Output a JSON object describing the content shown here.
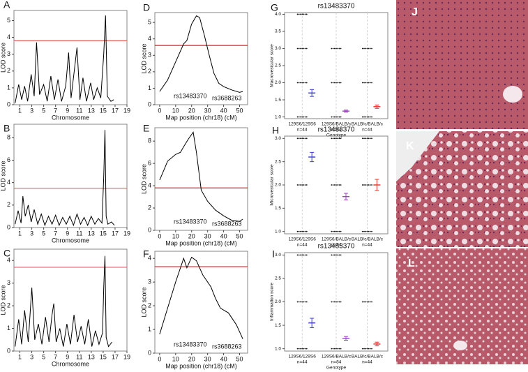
{
  "chart_data": [
    {
      "panel": "A",
      "type": "line",
      "ylabel": "LOD score",
      "xlabel": "Chromosome",
      "color": "#000000",
      "threshold": 3.8,
      "threshold_color": "#e06060",
      "x": [
        0.2,
        0.8,
        1.3,
        1.8,
        2.3,
        2.9,
        3.4,
        3.8,
        4.3,
        5,
        5.6,
        6.2,
        6.8,
        7.4,
        8,
        8.7,
        9.2,
        9.6,
        10.2,
        10.6,
        11.1,
        11.6,
        12.2,
        12.9,
        13.4,
        14,
        14.6,
        15.1,
        15.4,
        15.7,
        16.3,
        16.8
      ],
      "values": [
        0.1,
        1.2,
        0.3,
        1.1,
        0.2,
        1.8,
        0.5,
        3.7,
        0.6,
        1.2,
        0.2,
        1.7,
        0.3,
        1.5,
        0.2,
        1.1,
        3.1,
        0.4,
        2.2,
        3.4,
        0.3,
        1.6,
        0.2,
        1.3,
        0.3,
        1.0,
        0.4,
        3.0,
        5.3,
        0.5,
        0.2,
        0.3
      ],
      "xlim": [
        0,
        19
      ],
      "xticks": [
        1,
        3,
        5,
        7,
        9,
        11,
        13,
        15,
        17,
        19
      ],
      "ylim": [
        0,
        5.6
      ],
      "yticks": [
        0,
        1,
        2,
        3,
        4,
        5
      ]
    },
    {
      "panel": "B",
      "type": "line",
      "ylabel": "LOD score",
      "xlabel": "Chromosome",
      "color": "#000000",
      "threshold": 3.5,
      "threshold_color": "#e06060",
      "x": [
        0.2,
        0.7,
        1.2,
        1.5,
        1.9,
        2.4,
        2.9,
        3.4,
        4,
        4.6,
        5.2,
        5.8,
        6.4,
        7,
        7.6,
        8.2,
        8.8,
        9.4,
        10,
        10.6,
        11.2,
        11.8,
        12.4,
        13,
        13.6,
        14.2,
        14.8,
        15.1,
        15.3,
        15.5,
        15.8,
        16.4,
        16.9
      ],
      "values": [
        0.3,
        1.5,
        0.4,
        2.8,
        1.0,
        2.0,
        0.5,
        1.6,
        0.3,
        1.2,
        0.2,
        1.0,
        0.3,
        1.1,
        0.2,
        0.9,
        0.3,
        1.0,
        0.2,
        1.2,
        0.3,
        0.9,
        0.2,
        1.0,
        0.3,
        0.8,
        0.4,
        4.5,
        8.7,
        1.0,
        0.3,
        0.5,
        0.2
      ],
      "xlim": [
        0,
        19
      ],
      "xticks": [
        1,
        3,
        5,
        7,
        9,
        11,
        13,
        15,
        17,
        19
      ],
      "ylim": [
        0,
        9.2
      ],
      "yticks": [
        0,
        2,
        4,
        6,
        8
      ]
    },
    {
      "panel": "C",
      "type": "line",
      "ylabel": "LOD score",
      "xlabel": "Chromosome",
      "color": "#000000",
      "threshold": 3.7,
      "threshold_color": "#e06060",
      "x": [
        0.2,
        0.8,
        1.3,
        1.8,
        2.4,
        3,
        3.5,
        4.1,
        4.7,
        5.3,
        5.9,
        6.4,
        6.7,
        7.1,
        7.7,
        8.3,
        8.9,
        9.5,
        10.1,
        10.7,
        11.3,
        11.9,
        12.5,
        13.1,
        13.7,
        14.3,
        14.9,
        15.1,
        15.3,
        15.5,
        15.9,
        16.5
      ],
      "values": [
        0.2,
        1.4,
        0.3,
        1.8,
        0.4,
        2.8,
        0.5,
        1.2,
        0.3,
        1.5,
        0.4,
        1.6,
        2.1,
        0.4,
        1.0,
        0.2,
        1.2,
        0.3,
        1.6,
        0.4,
        1.1,
        0.3,
        1.4,
        0.2,
        0.9,
        0.3,
        0.8,
        2.8,
        4.2,
        0.6,
        0.2,
        0.4
      ],
      "xlim": [
        0,
        19
      ],
      "xticks": [
        1,
        3,
        5,
        7,
        9,
        11,
        13,
        15,
        17,
        19
      ],
      "ylim": [
        0,
        4.5
      ],
      "yticks": [
        0,
        1,
        2,
        3,
        4
      ]
    },
    {
      "panel": "D",
      "type": "line",
      "ylabel": "LOD score",
      "xlabel": "Map position (chr18) (cM)",
      "color": "#000000",
      "threshold": 3.6,
      "threshold_color": "#e02020",
      "annotations": [
        "rs13483370",
        "rs3688263"
      ],
      "x": [
        0,
        5,
        10,
        15,
        17,
        20,
        23,
        25,
        28,
        31,
        34,
        37,
        40,
        45,
        50,
        52
      ],
      "values": [
        0.8,
        1.5,
        2.6,
        3.7,
        3.9,
        4.9,
        5.4,
        5.3,
        4.2,
        3.0,
        1.9,
        1.3,
        1.1,
        0.9,
        0.75,
        0.8
      ],
      "xlim": [
        -3,
        55
      ],
      "xticks": [
        0,
        10,
        20,
        30,
        40,
        50
      ],
      "ylim": [
        0,
        5.6
      ],
      "yticks": [
        0,
        1,
        2,
        3,
        4,
        5
      ]
    },
    {
      "panel": "E",
      "type": "line",
      "ylabel": "LOD score",
      "xlabel": "Map position (chr18) (cM)",
      "color": "#000000",
      "threshold": 3.8,
      "threshold_color": "#e02020",
      "annotations": [
        "rs13483370",
        "rs3688263"
      ],
      "x": [
        0,
        5,
        10,
        13,
        15,
        18,
        21,
        23,
        26,
        30,
        35,
        40,
        45,
        50,
        52
      ],
      "values": [
        4.5,
        6.2,
        6.8,
        7,
        7.5,
        8.2,
        8.8,
        7,
        3.6,
        2.6,
        1.8,
        1.3,
        0.9,
        0.8,
        1.0
      ],
      "xlim": [
        -3,
        55
      ],
      "xticks": [
        0,
        10,
        20,
        30,
        40,
        50
      ],
      "ylim": [
        0,
        9.2
      ],
      "yticks": [
        0,
        2,
        4,
        6,
        8
      ]
    },
    {
      "panel": "F",
      "type": "line",
      "ylabel": "LOD score",
      "xlabel": "Map position (chr18) (cM)",
      "color": "#000000",
      "threshold": 3.65,
      "threshold_color": "#e02020",
      "annotations": [
        "rs13483370",
        "rs3688263"
      ],
      "x": [
        0,
        5,
        10,
        15,
        17,
        20,
        23,
        27,
        32,
        35,
        38,
        43,
        48,
        52
      ],
      "values": [
        0.8,
        1.9,
        3.0,
        4.0,
        3.6,
        4.05,
        3.9,
        3.3,
        2.8,
        2.3,
        1.9,
        1.7,
        1.2,
        0.6
      ],
      "xlim": [
        -3,
        55
      ],
      "xticks": [
        0,
        10,
        20,
        30,
        40,
        50
      ],
      "ylim": [
        0,
        4.3
      ],
      "yticks": [
        0,
        1,
        2,
        3,
        4
      ]
    },
    {
      "panel": "G",
      "type": "dot",
      "title": "rs13483370",
      "ylabel": "Macrovesicular score",
      "xlabel": "Genotype",
      "categories": [
        "129S6/129S6",
        "129S6/BALB/c",
        "BALB/c/BALB/c"
      ],
      "counts": [
        "n=44",
        "n=84",
        "n=44"
      ],
      "groups": [
        {
          "color": "#3a3ad0",
          "mean": 1.7,
          "error": 0.1,
          "levels": [
            1,
            2,
            3,
            4
          ]
        },
        {
          "color": "#a040c8",
          "mean": 1.17,
          "error": 0.03,
          "levels": [
            1,
            2,
            3
          ]
        },
        {
          "color": "#e03030",
          "mean": 1.3,
          "error": 0.05,
          "levels": [
            1,
            2,
            3
          ]
        }
      ],
      "ylim": [
        0.95,
        4.05
      ],
      "yticks": [
        {
          "value": 1,
          "label": "1.0"
        },
        {
          "value": 1.5,
          "label": "1.5"
        },
        {
          "value": 2,
          "label": "2.0"
        },
        {
          "value": 2.5,
          "label": "2.5"
        },
        {
          "value": 3,
          "label": "3.0"
        },
        {
          "value": 3.5,
          "label": "3.5"
        },
        {
          "value": 4,
          "label": "4.0"
        }
      ]
    },
    {
      "panel": "H",
      "type": "dot",
      "title": "rs13483370",
      "ylabel": "Microvesicular score",
      "categories": [
        "129S6/129S6",
        "129S6/BALB/c",
        "BALB/c/BALB/c"
      ],
      "counts": [
        "n=44",
        "n=84",
        "n=44"
      ],
      "groups": [
        {
          "color": "#3a3ad0",
          "mean": 2.6,
          "error": 0.1,
          "levels": [
            1,
            2,
            3
          ]
        },
        {
          "color": "#a040c8",
          "mean": 1.75,
          "error": 0.07,
          "levels": [
            1,
            2,
            3
          ]
        },
        {
          "color": "#e03030",
          "mean": 2.0,
          "error": 0.12,
          "levels": [
            1,
            2,
            3
          ]
        }
      ],
      "ylim": [
        0.95,
        3.05
      ],
      "yticks": [
        {
          "value": 1,
          "label": "1.0"
        },
        {
          "value": 1.5,
          "label": "1.5"
        },
        {
          "value": 2,
          "label": "2.0"
        },
        {
          "value": 2.5,
          "label": "2.5"
        },
        {
          "value": 3,
          "label": "3.0"
        }
      ]
    },
    {
      "panel": "I",
      "type": "dot",
      "title": "rs13483370",
      "ylabel": "Inflammation score",
      "xlabel": "Genotype",
      "categories": [
        "129S6/129S6",
        "129S6/BALB/c",
        "BALB/c/BALB/c"
      ],
      "counts": [
        "n=44",
        "n=84",
        "n=44"
      ],
      "groups": [
        {
          "color": "#3a3ad0",
          "mean": 1.55,
          "error": 0.1,
          "levels": [
            1,
            2,
            3
          ]
        },
        {
          "color": "#a040c8",
          "mean": 1.22,
          "error": 0.04,
          "levels": [
            1,
            2,
            3
          ]
        },
        {
          "color": "#e03030",
          "mean": 1.1,
          "error": 0.04,
          "levels": [
            1,
            2
          ]
        }
      ],
      "ylim": [
        0.95,
        3.05
      ],
      "yticks": [
        {
          "value": 1,
          "label": "1.0"
        },
        {
          "value": 1.5,
          "label": "1.5"
        },
        {
          "value": 2,
          "label": "2.0"
        },
        {
          "value": 2.5,
          "label": "2.5"
        },
        {
          "value": 3,
          "label": "3.0"
        }
      ]
    }
  ],
  "images": [
    {
      "label": "J"
    },
    {
      "label": "K"
    },
    {
      "label": "L"
    }
  ]
}
